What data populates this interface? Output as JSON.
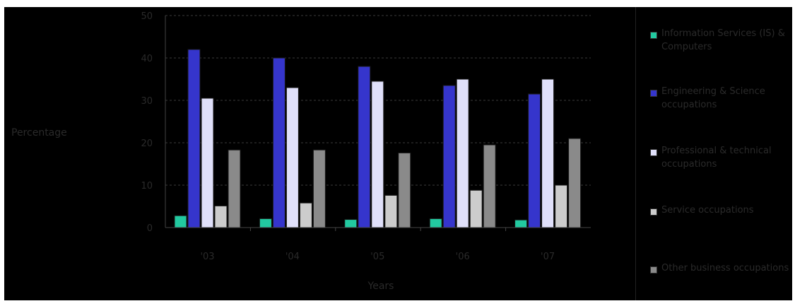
{
  "chart_data": {
    "type": "bar",
    "title": "",
    "ylabel": "Percentage",
    "xlabel": "Years",
    "ylim": [
      0,
      50
    ],
    "yticks": [
      0,
      10,
      20,
      30,
      40,
      50
    ],
    "categories": [
      "'03",
      "'04",
      "'05",
      "'06",
      "'07"
    ],
    "grid": true,
    "legend_position": "right",
    "series": [
      {
        "name": "Information Services (IS) & Computers",
        "color": "#22c9a0",
        "values": [
          2.8,
          2.1,
          1.9,
          2.1,
          1.8
        ]
      },
      {
        "name": "Engineering & Science occupations",
        "color": "#3535cc",
        "values": [
          42,
          40,
          38,
          33.5,
          31.5
        ]
      },
      {
        "name": "Professional & technical occupations",
        "color": "#e0e0fa",
        "values": [
          30.5,
          33,
          34.5,
          35,
          35
        ]
      },
      {
        "name": "Service occupations",
        "color": "#cccccc",
        "values": [
          5.1,
          5.8,
          7.6,
          8.8,
          10
        ]
      },
      {
        "name": "Other business occupations",
        "color": "#8a8a8a",
        "values": [
          18.3,
          18.3,
          17.6,
          19.5,
          21
        ]
      }
    ]
  }
}
